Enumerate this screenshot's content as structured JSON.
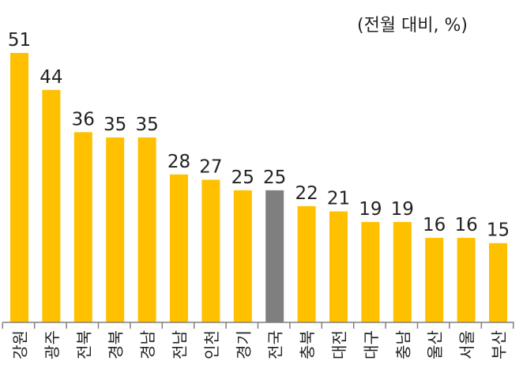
{
  "chart_data": {
    "type": "bar",
    "unit_note": "(전월 대비, %)",
    "categories": [
      "강원",
      "광주",
      "전북",
      "경북",
      "경남",
      "전남",
      "인천",
      "경기",
      "전국",
      "충북",
      "대전",
      "대구",
      "충남",
      "울산",
      "서울",
      "부산"
    ],
    "values": [
      51,
      44,
      36,
      35,
      35,
      28,
      27,
      25,
      25,
      22,
      21,
      19,
      19,
      16,
      16,
      15
    ],
    "ylim": [
      0,
      51
    ],
    "grid": false,
    "legend": "none",
    "colors": {
      "default": "#FFC000",
      "highlight": "#7F7F7F",
      "highlight_category": "전국",
      "axis": "#7F7F7F",
      "text": "#222222"
    }
  }
}
